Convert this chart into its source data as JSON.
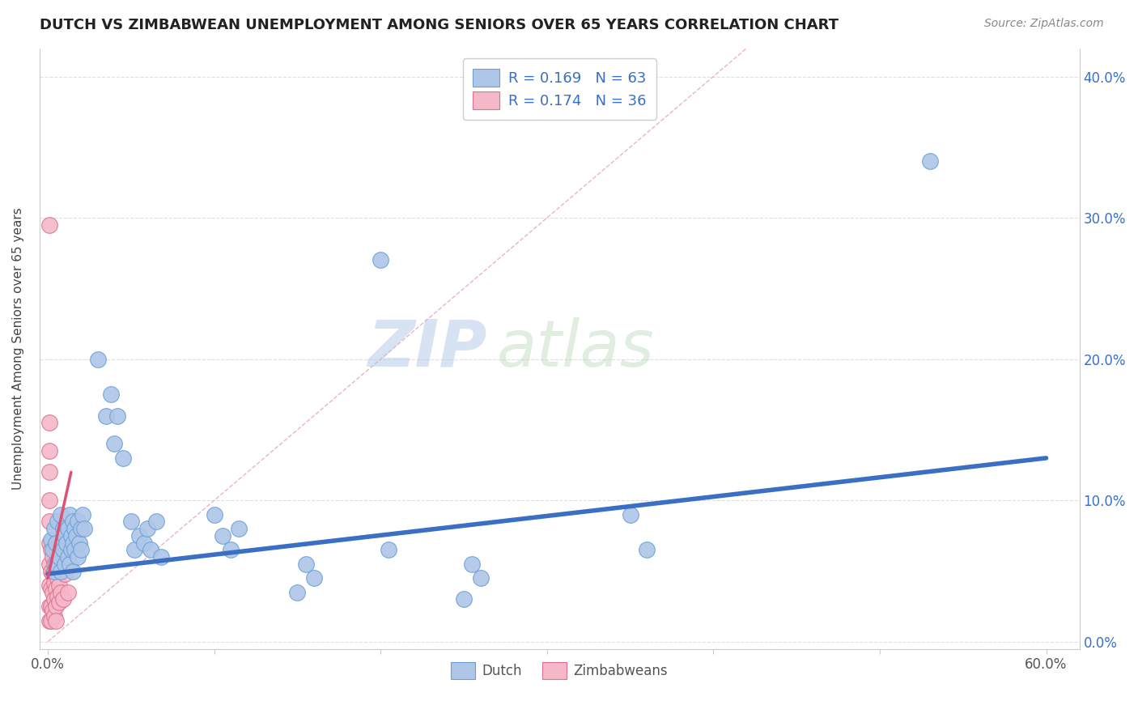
{
  "title": "DUTCH VS ZIMBABWEAN UNEMPLOYMENT AMONG SENIORS OVER 65 YEARS CORRELATION CHART",
  "source": "Source: ZipAtlas.com",
  "ylabel": "Unemployment Among Seniors over 65 years",
  "yticks": [
    0.0,
    0.1,
    0.2,
    0.3,
    0.4
  ],
  "ytick_labels": [
    "",
    "10.0%",
    "20.0%",
    "30.0%",
    "40.0%"
  ],
  "right_ytick_labels": [
    "0.0%",
    "10.0%",
    "20.0%",
    "30.0%",
    "40.0%"
  ],
  "xticks": [
    0.0,
    0.1,
    0.2,
    0.3,
    0.4,
    0.5,
    0.6
  ],
  "xtick_labels": [
    "0.0%",
    "",
    "",
    "",
    "",
    "",
    "60.0%"
  ],
  "xlim": [
    -0.005,
    0.62
  ],
  "ylim": [
    -0.005,
    0.42
  ],
  "dutch_R": "0.169",
  "dutch_N": "63",
  "zimb_R": "0.174",
  "zimb_N": "36",
  "dutch_color": "#aec6e8",
  "dutch_edge_color": "#6a9fd8",
  "dutch_line_color": "#3a6fc4",
  "zimb_color": "#f4b8c8",
  "zimb_edge_color": "#e07090",
  "zimb_line_color": "#e05070",
  "R_text_color": "#3a6fc4",
  "watermark_zip": "ZIP",
  "watermark_atlas": "atlas",
  "dutch_scatter": [
    [
      0.002,
      0.072
    ],
    [
      0.003,
      0.065
    ],
    [
      0.004,
      0.08
    ],
    [
      0.004,
      0.05
    ],
    [
      0.005,
      0.07
    ],
    [
      0.005,
      0.055
    ],
    [
      0.006,
      0.085
    ],
    [
      0.007,
      0.06
    ],
    [
      0.008,
      0.09
    ],
    [
      0.008,
      0.05
    ],
    [
      0.009,
      0.065
    ],
    [
      0.009,
      0.08
    ],
    [
      0.01,
      0.075
    ],
    [
      0.01,
      0.055
    ],
    [
      0.011,
      0.07
    ],
    [
      0.012,
      0.06
    ],
    [
      0.012,
      0.08
    ],
    [
      0.013,
      0.09
    ],
    [
      0.013,
      0.055
    ],
    [
      0.014,
      0.075
    ],
    [
      0.014,
      0.065
    ],
    [
      0.015,
      0.085
    ],
    [
      0.015,
      0.07
    ],
    [
      0.015,
      0.05
    ],
    [
      0.016,
      0.08
    ],
    [
      0.016,
      0.065
    ],
    [
      0.017,
      0.075
    ],
    [
      0.018,
      0.06
    ],
    [
      0.018,
      0.085
    ],
    [
      0.019,
      0.07
    ],
    [
      0.02,
      0.08
    ],
    [
      0.02,
      0.065
    ],
    [
      0.021,
      0.09
    ],
    [
      0.022,
      0.08
    ],
    [
      0.03,
      0.2
    ],
    [
      0.035,
      0.16
    ],
    [
      0.038,
      0.175
    ],
    [
      0.04,
      0.14
    ],
    [
      0.042,
      0.16
    ],
    [
      0.045,
      0.13
    ],
    [
      0.05,
      0.085
    ],
    [
      0.052,
      0.065
    ],
    [
      0.055,
      0.075
    ],
    [
      0.058,
      0.07
    ],
    [
      0.06,
      0.08
    ],
    [
      0.062,
      0.065
    ],
    [
      0.065,
      0.085
    ],
    [
      0.068,
      0.06
    ],
    [
      0.1,
      0.09
    ],
    [
      0.105,
      0.075
    ],
    [
      0.11,
      0.065
    ],
    [
      0.115,
      0.08
    ],
    [
      0.15,
      0.035
    ],
    [
      0.155,
      0.055
    ],
    [
      0.16,
      0.045
    ],
    [
      0.2,
      0.27
    ],
    [
      0.205,
      0.065
    ],
    [
      0.25,
      0.03
    ],
    [
      0.255,
      0.055
    ],
    [
      0.26,
      0.045
    ],
    [
      0.35,
      0.09
    ],
    [
      0.36,
      0.065
    ],
    [
      0.53,
      0.34
    ]
  ],
  "zimb_scatter": [
    [
      0.001,
      0.295
    ],
    [
      0.001,
      0.155
    ],
    [
      0.001,
      0.135
    ],
    [
      0.001,
      0.12
    ],
    [
      0.001,
      0.1
    ],
    [
      0.001,
      0.085
    ],
    [
      0.001,
      0.07
    ],
    [
      0.001,
      0.055
    ],
    [
      0.001,
      0.04
    ],
    [
      0.001,
      0.025
    ],
    [
      0.001,
      0.015
    ],
    [
      0.002,
      0.065
    ],
    [
      0.002,
      0.05
    ],
    [
      0.002,
      0.038
    ],
    [
      0.002,
      0.025
    ],
    [
      0.002,
      0.015
    ],
    [
      0.003,
      0.06
    ],
    [
      0.003,
      0.048
    ],
    [
      0.003,
      0.035
    ],
    [
      0.003,
      0.022
    ],
    [
      0.004,
      0.055
    ],
    [
      0.004,
      0.042
    ],
    [
      0.004,
      0.03
    ],
    [
      0.004,
      0.018
    ],
    [
      0.005,
      0.05
    ],
    [
      0.005,
      0.038
    ],
    [
      0.005,
      0.025
    ],
    [
      0.005,
      0.015
    ],
    [
      0.006,
      0.045
    ],
    [
      0.006,
      0.032
    ],
    [
      0.007,
      0.04
    ],
    [
      0.007,
      0.028
    ],
    [
      0.008,
      0.035
    ],
    [
      0.009,
      0.03
    ],
    [
      0.01,
      0.048
    ],
    [
      0.012,
      0.035
    ]
  ],
  "dutch_trendline": [
    0.0,
    0.6,
    0.048,
    0.13
  ],
  "zimb_trendline": [
    0.0,
    0.014,
    0.045,
    0.12
  ],
  "diag_line": [
    0.0,
    0.42,
    0.0,
    0.42
  ]
}
